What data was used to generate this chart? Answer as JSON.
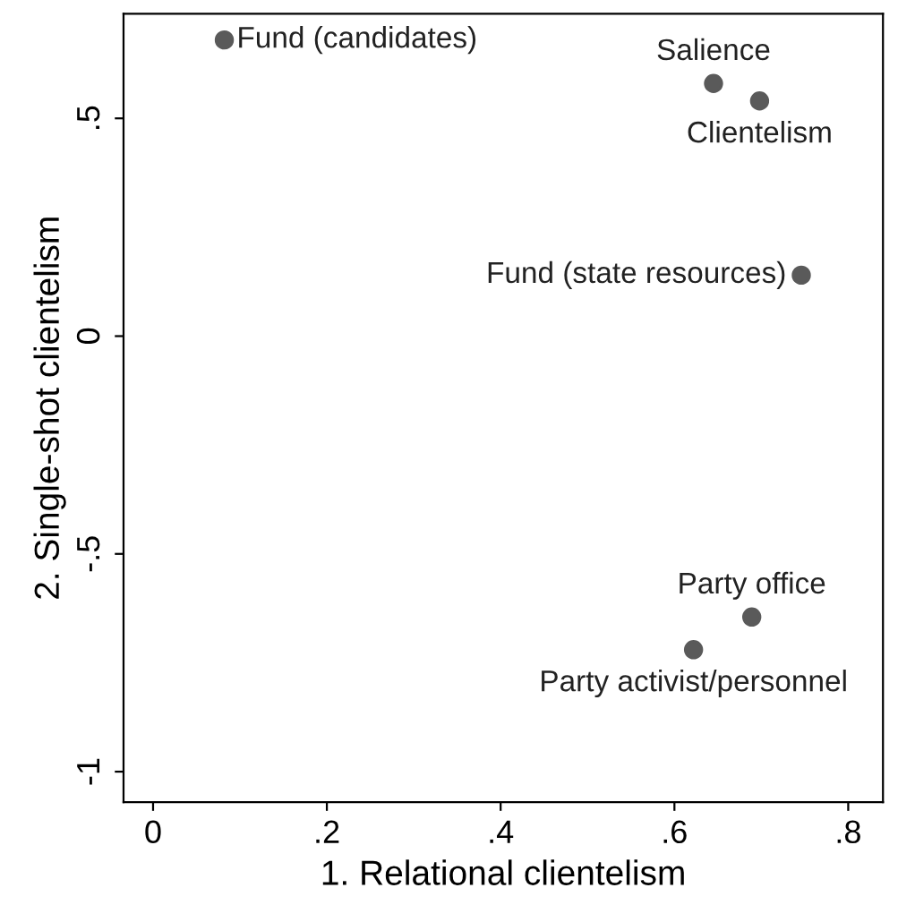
{
  "chart_data": {
    "type": "scatter",
    "xlabel": "1. Relational clientelism",
    "ylabel": "2. Single-shot clientelism",
    "x": [
      0.082,
      0.645,
      0.698,
      0.746,
      0.689,
      0.622
    ],
    "series": [
      {
        "color": "#5a5a5a",
        "values": [
          0.68,
          0.58,
          0.54,
          0.14,
          -0.645,
          -0.72
        ]
      }
    ],
    "annotations": [
      {
        "text": "Fund (candidates)",
        "x": 0.082,
        "y": 0.68
      },
      {
        "text": "Salience",
        "x": 0.645,
        "y": 0.58
      },
      {
        "text": "Clientelism",
        "x": 0.698,
        "y": 0.54
      },
      {
        "text": "Fund (state resources)",
        "x": 0.746,
        "y": 0.14
      },
      {
        "text": "Party office",
        "x": 0.689,
        "y": -0.645
      },
      {
        "text": "Party activist/personnel",
        "x": 0.622,
        "y": -0.72
      }
    ],
    "xlim": [
      -0.034,
      0.84
    ],
    "ylim": [
      -1.07,
      0.74
    ],
    "xticks": [
      0,
      {
        "value": 0.2,
        "label": ".2"
      },
      {
        "value": 0.4,
        "label": ".4"
      },
      {
        "value": 0.6,
        "label": ".6"
      },
      {
        "value": 0.8,
        "label": ".8"
      }
    ],
    "yticks": [
      -1,
      {
        "value": -0.5,
        "label": "-.5"
      },
      0,
      {
        "value": 0.5,
        "label": ".5"
      }
    ],
    "grid": false,
    "legend": false,
    "marker": "circle"
  }
}
